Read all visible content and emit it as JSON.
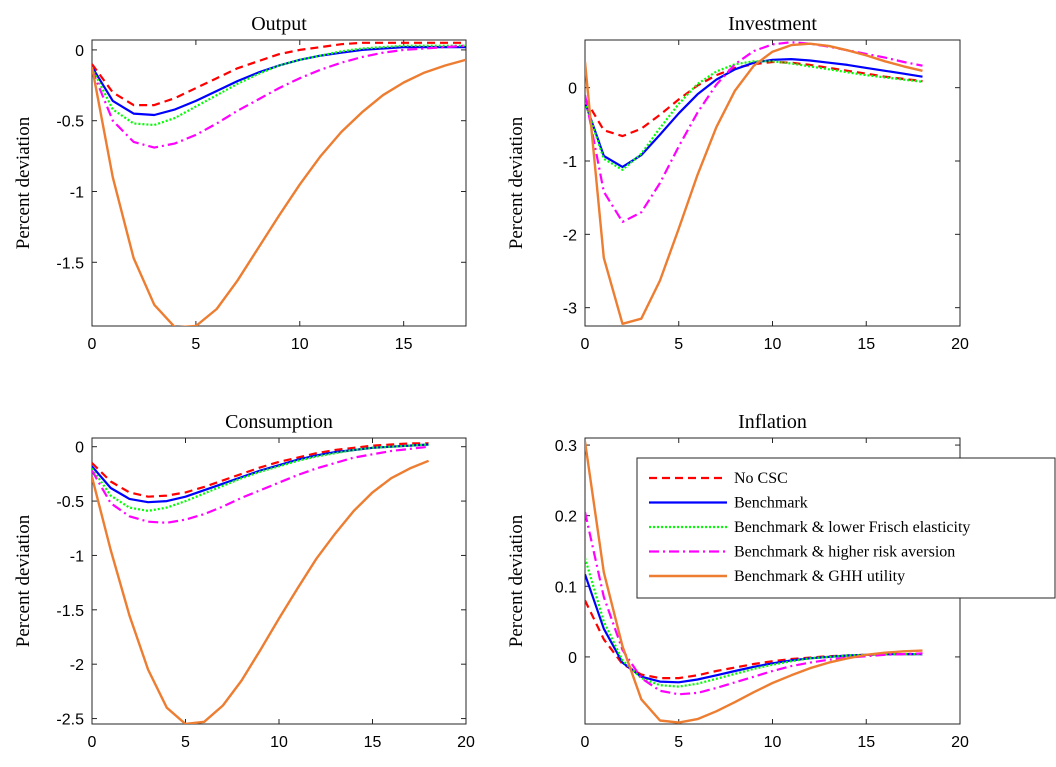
{
  "chart_data": [
    {
      "type": "line",
      "title": "Output",
      "xlabel": "",
      "ylabel": "Percent deviation",
      "xlim": [
        0,
        18
      ],
      "ylim": [
        -1.95,
        0.07
      ],
      "xticks": [
        0,
        5,
        10,
        15
      ],
      "yticks": [
        0,
        -0.5,
        -1,
        -1.5
      ],
      "ytick_labels": [
        "0",
        "-0.5",
        "-1",
        "-1.5"
      ],
      "x": [
        0,
        1,
        2,
        3,
        4,
        5,
        6,
        7,
        8,
        9,
        10,
        11,
        12,
        13,
        14,
        15,
        16,
        17,
        18
      ],
      "series": [
        {
          "name": "No CSC",
          "values": [
            -0.1,
            -0.3,
            -0.39,
            -0.39,
            -0.34,
            -0.27,
            -0.2,
            -0.13,
            -0.08,
            -0.03,
            0.0,
            0.02,
            0.04,
            0.05,
            0.05,
            0.05,
            0.05,
            0.05,
            0.05
          ]
        },
        {
          "name": "Benchmark",
          "values": [
            -0.12,
            -0.36,
            -0.45,
            -0.46,
            -0.42,
            -0.36,
            -0.29,
            -0.22,
            -0.16,
            -0.11,
            -0.07,
            -0.04,
            -0.02,
            0.0,
            0.01,
            0.02,
            0.02,
            0.02,
            0.02
          ]
        },
        {
          "name": "Benchmark & lower Frisch elasticity",
          "values": [
            -0.13,
            -0.42,
            -0.52,
            -0.53,
            -0.48,
            -0.4,
            -0.32,
            -0.24,
            -0.17,
            -0.11,
            -0.07,
            -0.04,
            -0.01,
            0.01,
            0.02,
            0.03,
            0.03,
            0.03,
            0.03
          ]
        },
        {
          "name": "Benchmark & higher risk aversion",
          "values": [
            -0.14,
            -0.5,
            -0.65,
            -0.69,
            -0.66,
            -0.6,
            -0.52,
            -0.43,
            -0.35,
            -0.27,
            -0.2,
            -0.14,
            -0.09,
            -0.05,
            -0.02,
            0.0,
            0.01,
            0.02,
            0.03
          ]
        },
        {
          "name": "Benchmark & GHH utility",
          "values": [
            -0.12,
            -0.9,
            -1.47,
            -1.8,
            -1.96,
            -1.95,
            -1.83,
            -1.63,
            -1.4,
            -1.17,
            -0.95,
            -0.75,
            -0.58,
            -0.44,
            -0.32,
            -0.23,
            -0.16,
            -0.11,
            -0.07
          ]
        }
      ]
    },
    {
      "type": "line",
      "title": "Investment",
      "xlabel": "",
      "ylabel": "Percent deviation",
      "xlim": [
        0,
        20
      ],
      "ylim": [
        -3.25,
        0.65
      ],
      "xticks": [
        0,
        5,
        10,
        15,
        20
      ],
      "yticks": [
        0,
        -1,
        -2,
        -3
      ],
      "ytick_labels": [
        "0",
        "-1",
        "-2",
        "-3"
      ],
      "x": [
        0,
        1,
        2,
        3,
        4,
        5,
        6,
        7,
        8,
        9,
        10,
        11,
        12,
        13,
        14,
        15,
        16,
        17,
        18
      ],
      "series": [
        {
          "name": "No CSC",
          "values": [
            -0.15,
            -0.58,
            -0.66,
            -0.56,
            -0.37,
            -0.16,
            0.03,
            0.17,
            0.27,
            0.32,
            0.35,
            0.34,
            0.31,
            0.27,
            0.23,
            0.19,
            0.15,
            0.12,
            0.09
          ]
        },
        {
          "name": "Benchmark",
          "values": [
            -0.2,
            -0.93,
            -1.08,
            -0.92,
            -0.64,
            -0.35,
            -0.09,
            0.11,
            0.25,
            0.34,
            0.38,
            0.39,
            0.37,
            0.34,
            0.31,
            0.27,
            0.23,
            0.19,
            0.15
          ]
        },
        {
          "name": "Benchmark & lower Frisch elasticity",
          "values": [
            -0.2,
            -0.97,
            -1.12,
            -0.9,
            -0.55,
            -0.22,
            0.05,
            0.22,
            0.32,
            0.36,
            0.36,
            0.33,
            0.29,
            0.25,
            0.21,
            0.17,
            0.14,
            0.11,
            0.08
          ]
        },
        {
          "name": "Benchmark & higher risk aversion",
          "values": [
            -0.1,
            -1.42,
            -1.83,
            -1.7,
            -1.3,
            -0.8,
            -0.34,
            0.04,
            0.32,
            0.5,
            0.59,
            0.62,
            0.6,
            0.56,
            0.51,
            0.46,
            0.41,
            0.35,
            0.3
          ]
        },
        {
          "name": "Benchmark & GHH utility",
          "values": [
            0.35,
            -2.32,
            -3.22,
            -3.15,
            -2.63,
            -1.92,
            -1.19,
            -0.54,
            -0.04,
            0.3,
            0.49,
            0.58,
            0.6,
            0.57,
            0.51,
            0.44,
            0.36,
            0.29,
            0.23
          ]
        }
      ]
    },
    {
      "type": "line",
      "title": "Consumption",
      "xlabel": "",
      "ylabel": "Percent deviation",
      "xlim": [
        0,
        20
      ],
      "ylim": [
        -2.55,
        0.08
      ],
      "xticks": [
        0,
        5,
        10,
        15,
        20
      ],
      "yticks": [
        0,
        -0.5,
        -1,
        -1.5,
        -2,
        -2.5
      ],
      "ytick_labels": [
        "0",
        "-0.5",
        "-1",
        "-1.5",
        "-2",
        "-2.5"
      ],
      "x": [
        0,
        1,
        2,
        3,
        4,
        5,
        6,
        7,
        8,
        9,
        10,
        11,
        12,
        13,
        14,
        15,
        16,
        17,
        18
      ],
      "series": [
        {
          "name": "No CSC",
          "values": [
            -0.15,
            -0.32,
            -0.42,
            -0.46,
            -0.45,
            -0.42,
            -0.37,
            -0.31,
            -0.25,
            -0.19,
            -0.14,
            -0.1,
            -0.06,
            -0.03,
            -0.01,
            0.01,
            0.02,
            0.03,
            0.03
          ]
        },
        {
          "name": "Benchmark",
          "values": [
            -0.18,
            -0.38,
            -0.48,
            -0.51,
            -0.5,
            -0.46,
            -0.4,
            -0.34,
            -0.28,
            -0.22,
            -0.17,
            -0.12,
            -0.08,
            -0.05,
            -0.03,
            -0.01,
            0.0,
            0.01,
            0.02
          ]
        },
        {
          "name": "Benchmark & lower Frisch elasticity",
          "values": [
            -0.2,
            -0.45,
            -0.56,
            -0.59,
            -0.56,
            -0.5,
            -0.43,
            -0.36,
            -0.29,
            -0.23,
            -0.18,
            -0.13,
            -0.09,
            -0.06,
            -0.03,
            -0.01,
            0.0,
            0.01,
            0.02
          ]
        },
        {
          "name": "Benchmark & higher risk aversion",
          "values": [
            -0.22,
            -0.52,
            -0.64,
            -0.69,
            -0.7,
            -0.67,
            -0.62,
            -0.55,
            -0.47,
            -0.4,
            -0.33,
            -0.26,
            -0.2,
            -0.15,
            -0.1,
            -0.07,
            -0.04,
            -0.02,
            0.0
          ]
        },
        {
          "name": "Benchmark & GHH utility",
          "values": [
            -0.28,
            -0.95,
            -1.55,
            -2.05,
            -2.4,
            -2.55,
            -2.53,
            -2.38,
            -2.15,
            -1.87,
            -1.58,
            -1.3,
            -1.03,
            -0.8,
            -0.59,
            -0.42,
            -0.29,
            -0.2,
            -0.13
          ]
        }
      ]
    },
    {
      "type": "line",
      "title": "Inflation",
      "xlabel": "",
      "ylabel": "Percent deviation",
      "xlim": [
        0,
        20
      ],
      "ylim": [
        -0.095,
        0.31
      ],
      "xticks": [
        0,
        5,
        10,
        15,
        20
      ],
      "yticks": [
        0.3,
        0.2,
        0.1,
        0
      ],
      "ytick_labels": [
        "0.3",
        "0.2",
        "0.1",
        "0"
      ],
      "x": [
        0,
        1,
        2,
        3,
        4,
        5,
        6,
        7,
        8,
        9,
        10,
        11,
        12,
        13,
        14,
        15,
        16,
        17,
        18
      ],
      "series": [
        {
          "name": "No CSC",
          "values": [
            0.08,
            0.025,
            -0.01,
            -0.025,
            -0.03,
            -0.03,
            -0.026,
            -0.02,
            -0.015,
            -0.01,
            -0.006,
            -0.003,
            -0.001,
            0.001,
            0.002,
            0.003,
            0.004,
            0.004,
            0.004
          ]
        },
        {
          "name": "Benchmark",
          "values": [
            0.117,
            0.04,
            -0.008,
            -0.028,
            -0.035,
            -0.036,
            -0.032,
            -0.026,
            -0.02,
            -0.014,
            -0.009,
            -0.005,
            -0.002,
            0.0,
            0.002,
            0.003,
            0.004,
            0.004,
            0.004
          ]
        },
        {
          "name": "Benchmark & lower Frisch elasticity",
          "values": [
            0.14,
            0.05,
            -0.005,
            -0.03,
            -0.04,
            -0.042,
            -0.038,
            -0.031,
            -0.024,
            -0.017,
            -0.011,
            -0.006,
            -0.002,
            0.0,
            0.002,
            0.003,
            0.004,
            0.004,
            0.004
          ]
        },
        {
          "name": "Benchmark & higher risk aversion",
          "values": [
            0.205,
            0.085,
            0.01,
            -0.03,
            -0.048,
            -0.053,
            -0.051,
            -0.044,
            -0.036,
            -0.028,
            -0.02,
            -0.013,
            -0.008,
            -0.004,
            -0.001,
            0.001,
            0.003,
            0.004,
            0.005
          ]
        },
        {
          "name": "Benchmark & GHH utility",
          "values": [
            0.305,
            0.12,
            0.015,
            -0.06,
            -0.09,
            -0.093,
            -0.088,
            -0.077,
            -0.064,
            -0.05,
            -0.037,
            -0.026,
            -0.016,
            -0.008,
            -0.002,
            0.003,
            0.006,
            0.008,
            0.009
          ]
        }
      ]
    }
  ],
  "legend": {
    "placement": "top-right of Inflation panel",
    "entries": [
      "No CSC",
      "Benchmark",
      "Benchmark & lower Frisch elasticity",
      "Benchmark & higher risk aversion",
      "Benchmark & GHH utility"
    ]
  },
  "series_colors": [
    "#ff0000",
    "#0000ff",
    "#00ff00",
    "#ff00ff",
    "#ed7d31"
  ],
  "series_styles": [
    "dashed",
    "solid",
    "dotted",
    "dash-dot",
    "solid"
  ]
}
